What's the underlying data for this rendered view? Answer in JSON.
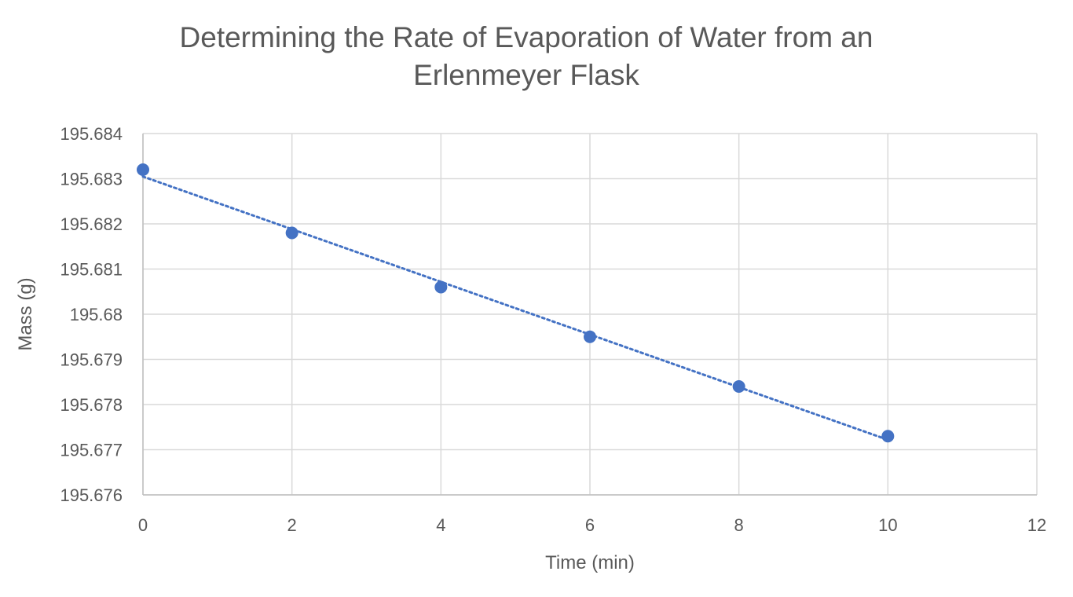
{
  "chart_data": {
    "type": "scatter",
    "title_lines": [
      "Determining the Rate of Evaporation of Water from an",
      "Erlenmeyer Flask"
    ],
    "xlabel": "Time (min)",
    "ylabel": "Mass (g)",
    "xlim": [
      0,
      12
    ],
    "ylim": [
      195.676,
      195.684
    ],
    "x_ticks": [
      "0",
      "2",
      "4",
      "6",
      "8",
      "10",
      "12"
    ],
    "y_ticks": [
      "195.676",
      "195.677",
      "195.678",
      "195.679",
      "195.68",
      "195.681",
      "195.682",
      "195.683",
      "195.684"
    ],
    "grid": true,
    "legend": "none",
    "series": [
      {
        "x": [
          0,
          2,
          4,
          6,
          8,
          10
        ],
        "y": [
          195.6832,
          195.6818,
          195.6806,
          195.6795,
          195.6784,
          195.6773
        ],
        "color": "#4472C4",
        "trendline": "linear-dotted"
      }
    ]
  }
}
